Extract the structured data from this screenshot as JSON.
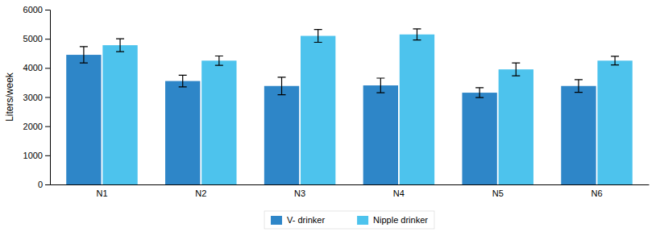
{
  "chart_data": {
    "type": "bar",
    "categories": [
      "N1",
      "N2",
      "N3",
      "N4",
      "N5",
      "N6"
    ],
    "series": [
      {
        "name": "V- drinker",
        "color": "#2e86c8",
        "values": [
          4450,
          3550,
          3380,
          3400,
          3150,
          3380
        ],
        "errors": [
          280,
          200,
          300,
          250,
          170,
          220
        ]
      },
      {
        "name": "Nipple drinker",
        "color": "#4dc3ed",
        "values": [
          4780,
          4250,
          5100,
          5150,
          3950,
          4250
        ],
        "errors": [
          220,
          160,
          220,
          190,
          220,
          150
        ]
      }
    ],
    "ylabel": "Liters/week",
    "ylim": [
      0,
      6000
    ],
    "yticks": [
      0,
      1000,
      2000,
      3000,
      4000,
      5000,
      6000
    ],
    "grid": false,
    "legend": "bottom"
  }
}
